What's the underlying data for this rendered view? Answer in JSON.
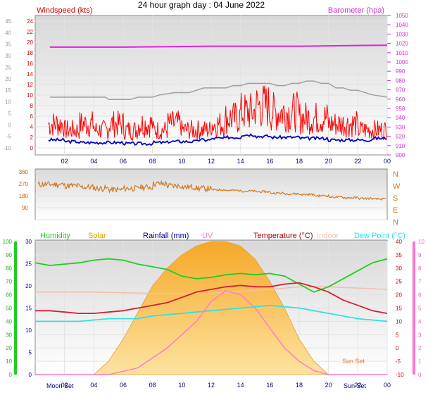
{
  "title": "24 hour graph day : 04 June 2022",
  "colors": {
    "wind_speed": "#ff0000",
    "wind_avg": "#0000cc",
    "barometer": "#e020e0",
    "wind_label": "#cc0000",
    "gust_grey": "#a0a0a0",
    "wind_dir": "#d2781e",
    "humidity": "#22cc22",
    "solar_fill": "#f6b53a",
    "rainfall": "#000080",
    "uv": "#ff77cc",
    "temperature": "#d42030",
    "indoor": "#f0c0b0",
    "dew_point": "#33e0e0",
    "hour_labels": "#000080",
    "compass": "#d2781e"
  },
  "chart_data": [
    {
      "type": "line",
      "panel": "wind_barometer",
      "title": "24 hour graph day : 04 June 2022",
      "left_axis_title": "Windspeed (kts)",
      "right_axis_title": "Barometer (hpa)",
      "x_ticks": [
        "02",
        "04",
        "06",
        "08",
        "10",
        "12",
        "14",
        "16",
        "18",
        "20",
        "22",
        "00"
      ],
      "y_ticks_red": [
        24,
        22,
        20,
        18,
        16,
        14,
        12,
        10,
        8,
        6,
        4,
        2,
        0
      ],
      "y_ticks_grey": [
        45,
        40,
        35,
        30,
        25,
        20,
        15,
        10,
        5,
        0,
        -5,
        -10
      ],
      "y_ticks_right": [
        1050,
        1040,
        1030,
        1020,
        1010,
        1000,
        990,
        980,
        970,
        960,
        950,
        940,
        930,
        920,
        910,
        900
      ],
      "gust_grey_kts_axis": {
        "x": [
          1,
          2,
          3,
          4,
          4.8,
          5,
          6.5,
          7,
          8,
          8.5,
          9.5,
          10,
          10.5,
          11,
          11.5,
          12,
          12.5,
          13,
          13.5,
          14,
          14.5,
          15,
          15.5,
          16,
          16.5,
          17,
          17.5,
          18,
          18.5,
          19,
          19.5,
          20,
          20.5,
          21,
          21.5,
          22,
          22.5,
          23,
          24
        ],
        "y": [
          12,
          12,
          12,
          12,
          12,
          11,
          11,
          12,
          12,
          13,
          14,
          14,
          14,
          15,
          16,
          16,
          16,
          16,
          17,
          17,
          18,
          18,
          18,
          18,
          17,
          17,
          18,
          18,
          19,
          19,
          18,
          18,
          16,
          16,
          15,
          15,
          14,
          13,
          12
        ]
      },
      "barometer": {
        "x": [
          1,
          6,
          12,
          18,
          24
        ],
        "y": [
          1016,
          1016,
          1017,
          1017,
          1018
        ]
      },
      "wind_speed_sampled": {
        "x": [
          1,
          2,
          3,
          4,
          5,
          6,
          7,
          8,
          9,
          10,
          11,
          12,
          13,
          14,
          15,
          16,
          17,
          18,
          19,
          20,
          21,
          22,
          23,
          24
        ],
        "y": [
          4,
          3,
          4,
          3,
          4,
          3,
          4,
          3,
          4,
          3,
          3,
          4,
          5,
          6,
          7,
          6,
          6,
          5,
          5,
          4,
          4,
          3,
          3,
          2
        ]
      },
      "wind_average": {
        "x": [
          1,
          2,
          3,
          4,
          5,
          6,
          7,
          8,
          9,
          10,
          11,
          12,
          13,
          14,
          15,
          16,
          17,
          18,
          19,
          20,
          21,
          22,
          23,
          24
        ],
        "y": [
          1.5,
          1.2,
          1.0,
          1.0,
          1.0,
          0.8,
          0.8,
          1.0,
          1.2,
          1.2,
          1.5,
          1.8,
          2.0,
          2.5,
          2.2,
          2.0,
          2.0,
          1.8,
          1.8,
          1.5,
          1.5,
          1.5,
          1.8,
          1.0
        ]
      }
    },
    {
      "type": "line",
      "panel": "wind_direction",
      "y_ticks": [
        360,
        270,
        180,
        90,
        0
      ],
      "compass": [
        "N",
        "W",
        "S",
        "E",
        "N"
      ],
      "x": [
        1,
        2,
        3,
        4,
        5,
        6,
        7,
        8,
        9,
        10,
        11,
        12,
        13,
        14,
        15,
        16,
        17,
        18,
        19,
        20,
        21,
        22,
        23,
        24
      ],
      "y": [
        265,
        255,
        245,
        235,
        225,
        235,
        245,
        270,
        255,
        245,
        235,
        225,
        220,
        215,
        210,
        200,
        195,
        190,
        180,
        170,
        165,
        160,
        155,
        150
      ]
    },
    {
      "type": "line",
      "panel": "temperature_humidity",
      "legend": [
        "Humidity",
        "Solar",
        "Rainfall (mm)",
        "UV",
        "Temperature (°C)",
        "Indoor",
        "Dew Point (°C)"
      ],
      "right_axis_title": "Temperature (°C)",
      "y_ticks_humidity": [
        100,
        90,
        80,
        70,
        60,
        50,
        40,
        30,
        20,
        10,
        0
      ],
      "y_ticks_blue": [
        30,
        25,
        20,
        15,
        10,
        5,
        0
      ],
      "y_ticks_temp": [
        40,
        35,
        30,
        25,
        20,
        15,
        10,
        5,
        0,
        -5,
        -10
      ],
      "y_ticks_uv": [
        10,
        9,
        8,
        7,
        6,
        5,
        4,
        3,
        2,
        1,
        0
      ],
      "x_ticks": [
        "02",
        "04",
        "06",
        "08",
        "10",
        "12",
        "14",
        "16",
        "18",
        "20",
        "22",
        "00"
      ],
      "x_ticks_bottom_overlaid": [
        "Moon Set",
        "Sun Set"
      ],
      "annotations": [
        "Sun Set"
      ],
      "humidity": {
        "x": [
          0,
          1,
          2,
          3,
          4,
          5,
          6,
          7,
          8,
          9,
          10,
          11,
          12,
          13,
          14,
          15,
          16,
          17,
          18,
          19,
          20,
          21,
          22,
          23,
          24
        ],
        "y": [
          84,
          82,
          83,
          84,
          86,
          87,
          86,
          83,
          81,
          79,
          74,
          72,
          73,
          75,
          76,
          75,
          76,
          74,
          68,
          62,
          66,
          72,
          78,
          84,
          87
        ]
      },
      "temperature": {
        "x": [
          0,
          1,
          2,
          3,
          4,
          5,
          6,
          7,
          8,
          9,
          10,
          11,
          12,
          13,
          14,
          15,
          16,
          17,
          18,
          19,
          20,
          21,
          22,
          23,
          24
        ],
        "y": [
          14,
          14,
          13.5,
          13,
          13,
          13.5,
          14,
          15,
          16,
          17,
          19,
          21,
          22,
          23,
          23.5,
          23,
          23,
          24,
          24.5,
          23,
          21,
          18,
          16,
          14,
          13
        ]
      },
      "dew_point": {
        "x": [
          0,
          1,
          2,
          3,
          4,
          5,
          6,
          7,
          8,
          9,
          10,
          11,
          12,
          13,
          14,
          15,
          16,
          17,
          18,
          19,
          20,
          21,
          22,
          23,
          24
        ],
        "y": [
          10,
          10,
          10,
          10,
          10.5,
          11,
          11,
          11,
          12,
          12.5,
          13,
          13.5,
          14,
          14.5,
          15,
          15.5,
          16,
          15.5,
          15,
          14,
          13,
          12,
          11,
          10.5,
          10
        ]
      },
      "indoor": {
        "x": [
          0,
          4,
          8,
          12,
          16,
          18,
          20,
          24
        ],
        "y": [
          21,
          21,
          20.5,
          20.5,
          22,
          23,
          23,
          22
        ]
      },
      "solar": {
        "x": [
          0,
          4,
          5,
          6,
          7,
          8,
          9,
          10,
          11,
          12,
          13,
          14,
          15,
          16,
          17,
          18,
          19,
          20,
          24
        ],
        "y": [
          0,
          0,
          3,
          8,
          14,
          20,
          24,
          27,
          29,
          30,
          30,
          29,
          26,
          21,
          15,
          8,
          3,
          0,
          0
        ]
      },
      "uv": {
        "x": [
          0,
          5,
          7,
          9,
          11,
          12,
          13,
          14,
          15,
          16,
          17,
          18,
          19,
          20,
          24
        ],
        "y": [
          0,
          0,
          0.5,
          2,
          4,
          5.5,
          6.3,
          6,
          5,
          3.5,
          2,
          1,
          0.3,
          0,
          0
        ]
      }
    }
  ]
}
